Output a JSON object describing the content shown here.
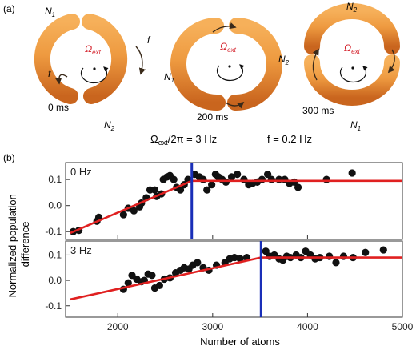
{
  "panel_a": {
    "label": "(a)",
    "omega_symbol": "Ω",
    "omega_sub": "ext",
    "rings": [
      {
        "time": "0 ms",
        "top": "N",
        "top_sub": "1",
        "bottom": "N",
        "bottom_sub": "2",
        "side_left": "f",
        "side_right": "f",
        "side": ""
      },
      {
        "time": "200 ms",
        "top": "",
        "top_sub": "",
        "bottom": "",
        "bottom_sub": "",
        "side_left": "N",
        "side_left_sub": "1",
        "side_right": "N",
        "side_right_sub": "2",
        "side": ""
      },
      {
        "time": "300 ms",
        "top": "N",
        "top_sub": "2",
        "bottom": "N",
        "bottom_sub": "1",
        "side_left": "",
        "side_right": "",
        "side": ""
      }
    ],
    "caption_omega_prefix": "Ω",
    "caption_omega_sub": "ext",
    "caption_omega_suffix": "/2π = 3 Hz",
    "caption_f": "f = 0.2 Hz",
    "colors": {
      "ring_outer": "#d8782a",
      "ring_mid": "#f0a04a",
      "ring_light": "#fcd08a",
      "omega_text": "#d4202a"
    }
  },
  "panel_b": {
    "label": "(b)",
    "ylabel_line1": "Normalized population",
    "ylabel_line2": "difference",
    "xlabel": "Number of atoms"
  },
  "chart_data": [
    {
      "type": "scatter",
      "label": "0 Hz",
      "xlim": [
        1450,
        5000
      ],
      "ylim": [
        -0.13,
        0.165
      ],
      "yticks": [
        -0.1,
        0.0,
        0.1
      ],
      "ytick_labels": [
        "-0.1",
        "0.0",
        "0.1"
      ],
      "vline_x": 2780,
      "fit": [
        [
          1500,
          -0.105
        ],
        [
          2780,
          0.095
        ],
        [
          5000,
          0.095
        ]
      ],
      "points": [
        [
          1530,
          -0.1
        ],
        [
          1590,
          -0.095
        ],
        [
          1780,
          -0.06
        ],
        [
          1800,
          -0.045
        ],
        [
          2060,
          -0.035
        ],
        [
          2110,
          -0.01
        ],
        [
          2170,
          -0.02
        ],
        [
          2230,
          -0.005
        ],
        [
          2250,
          0.01
        ],
        [
          2300,
          0.03
        ],
        [
          2340,
          0.06
        ],
        [
          2390,
          0.06
        ],
        [
          2410,
          0.035
        ],
        [
          2460,
          0.045
        ],
        [
          2480,
          0.1
        ],
        [
          2520,
          0.11
        ],
        [
          2550,
          0.115
        ],
        [
          2590,
          0.1
        ],
        [
          2620,
          0.07
        ],
        [
          2660,
          0.06
        ],
        [
          2700,
          0.08
        ],
        [
          2740,
          0.1
        ],
        [
          2810,
          0.12
        ],
        [
          2860,
          0.11
        ],
        [
          2900,
          0.1
        ],
        [
          2940,
          0.06
        ],
        [
          2990,
          0.08
        ],
        [
          3030,
          0.12
        ],
        [
          3060,
          0.11
        ],
        [
          3100,
          0.1
        ],
        [
          3140,
          0.09
        ],
        [
          3200,
          0.11
        ],
        [
          3260,
          0.12
        ],
        [
          3330,
          0.1
        ],
        [
          3380,
          0.08
        ],
        [
          3420,
          0.085
        ],
        [
          3470,
          0.09
        ],
        [
          3520,
          0.1
        ],
        [
          3580,
          0.12
        ],
        [
          3620,
          0.1
        ],
        [
          3700,
          0.1
        ],
        [
          3760,
          0.1
        ],
        [
          3810,
          0.085
        ],
        [
          3860,
          0.09
        ],
        [
          3900,
          0.07
        ],
        [
          4200,
          0.1
        ],
        [
          4470,
          0.125
        ]
      ]
    },
    {
      "type": "scatter",
      "label": "3 Hz",
      "xlim": [
        1450,
        5000
      ],
      "ylim": [
        -0.145,
        0.155
      ],
      "yticks": [
        -0.1,
        0.0,
        0.1
      ],
      "ytick_labels": [
        "-0.1",
        "0.0",
        "0.1"
      ],
      "vline_x": 3510,
      "fit": [
        [
          1500,
          -0.075
        ],
        [
          3510,
          0.09
        ],
        [
          5000,
          0.09
        ]
      ],
      "points": [
        [
          2060,
          -0.035
        ],
        [
          2110,
          -0.01
        ],
        [
          2150,
          0.02
        ],
        [
          2200,
          0.005
        ],
        [
          2250,
          -0.005
        ],
        [
          2280,
          0.0
        ],
        [
          2320,
          0.025
        ],
        [
          2360,
          0.02
        ],
        [
          2390,
          -0.03
        ],
        [
          2440,
          -0.02
        ],
        [
          2490,
          0.005
        ],
        [
          2550,
          0.01
        ],
        [
          2610,
          0.03
        ],
        [
          2660,
          0.04
        ],
        [
          2700,
          0.05
        ],
        [
          2750,
          0.045
        ],
        [
          2790,
          0.06
        ],
        [
          2840,
          0.07
        ],
        [
          2900,
          0.05
        ],
        [
          2960,
          0.04
        ],
        [
          3040,
          0.06
        ],
        [
          3130,
          0.07
        ],
        [
          3180,
          0.085
        ],
        [
          3230,
          0.09
        ],
        [
          3290,
          0.085
        ],
        [
          3360,
          0.09
        ],
        [
          3560,
          0.115
        ],
        [
          3600,
          0.095
        ],
        [
          3650,
          0.1
        ],
        [
          3700,
          0.085
        ],
        [
          3740,
          0.08
        ],
        [
          3780,
          0.095
        ],
        [
          3820,
          0.09
        ],
        [
          3880,
          0.1
        ],
        [
          3930,
          0.09
        ],
        [
          3980,
          0.115
        ],
        [
          4030,
          0.1
        ],
        [
          4080,
          0.085
        ],
        [
          4130,
          0.09
        ],
        [
          4230,
          0.095
        ],
        [
          4300,
          0.07
        ],
        [
          4380,
          0.095
        ],
        [
          4480,
          0.09
        ],
        [
          4610,
          0.11
        ],
        [
          4800,
          0.12
        ]
      ]
    }
  ],
  "x_axis": {
    "ticks": [
      2000,
      3000,
      4000,
      5000
    ],
    "tick_labels": [
      "2000",
      "3000",
      "4000",
      "5000"
    ]
  },
  "colors": {
    "points": "#111111",
    "fit": "#e02020",
    "vline": "#1a2fb8",
    "frame": "#333333"
  }
}
